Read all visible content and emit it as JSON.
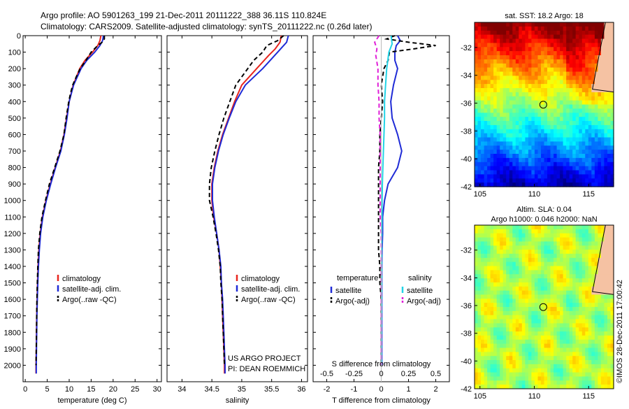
{
  "header": {
    "line1": "Argo profile: AO 5901263_199 21-Dec-2011 20111222_388 36.11S 110.824E",
    "line2": "Climatology: CARS2009. Satellite-adjusted climatology: synTS_20111222.nc (0.26d later)"
  },
  "colors": {
    "clim": "#e8261e",
    "sat": "#1f2bd6",
    "argo": "#000000",
    "sat_s": "#22d3e6",
    "argo_s": "#e020d8"
  },
  "chart_data": [
    {
      "type": "line",
      "name": "temperature",
      "xlabel": "temperature (deg C)",
      "ylabel": "",
      "xlim": [
        -0.5,
        31
      ],
      "ylim": [
        2100,
        0
      ],
      "xticks": [
        "0",
        "5",
        "10",
        "15",
        "20",
        "25",
        "30"
      ],
      "yticks": [
        "0",
        "100",
        "200",
        "300",
        "400",
        "500",
        "600",
        "700",
        "800",
        "900",
        "1000",
        "1100",
        "1200",
        "1300",
        "1400",
        "1500",
        "1600",
        "1700",
        "1800",
        "1900",
        "2000"
      ],
      "legend": [
        "climatology",
        "satellite-adj. clim.",
        "Argo(..raw -QC)"
      ],
      "series": [
        {
          "name": "climatology",
          "color_key": "clim",
          "depth": [
            0,
            30,
            60,
            100,
            150,
            200,
            300,
            400,
            500,
            600,
            700,
            800,
            900,
            1000,
            1100,
            1200,
            1300,
            1400,
            1500,
            1600,
            1700,
            1800,
            1900,
            2000,
            2050
          ],
          "values": [
            17.2,
            17.0,
            16.5,
            15.3,
            13.6,
            12.4,
            10.9,
            10.0,
            9.4,
            8.8,
            8.0,
            6.8,
            5.7,
            4.7,
            3.9,
            3.4,
            3.1,
            2.9,
            2.8,
            2.7,
            2.6,
            2.55,
            2.5,
            2.45,
            2.45
          ]
        },
        {
          "name": "satellite-adj. clim.",
          "color_key": "sat",
          "depth": [
            0,
            30,
            60,
            100,
            150,
            200,
            300,
            400,
            500,
            600,
            700,
            800,
            900,
            1000,
            1100,
            1200,
            1300,
            1400,
            1500,
            1600,
            1700,
            1800,
            1900,
            2000,
            2050
          ],
          "values": [
            17.8,
            17.6,
            17.0,
            15.8,
            14.0,
            12.7,
            11.0,
            10.0,
            9.5,
            8.9,
            8.1,
            6.9,
            5.8,
            4.8,
            4.0,
            3.5,
            3.2,
            3.0,
            2.85,
            2.75,
            2.65,
            2.6,
            2.55,
            2.5,
            2.5
          ]
        },
        {
          "name": "Argo(..raw -QC)",
          "color_key": "argo",
          "depth": [
            0,
            20,
            40,
            60,
            100,
            150,
            200,
            250,
            300,
            350,
            400,
            500,
            600,
            700,
            800,
            900,
            1000,
            1100,
            1200,
            1300,
            1400,
            1500,
            1600,
            1700,
            1800,
            1900,
            2000
          ],
          "values": [
            18.0,
            18.0,
            17.5,
            16.5,
            15.0,
            13.8,
            12.5,
            11.6,
            10.8,
            10.3,
            9.9,
            9.3,
            8.8,
            7.9,
            6.7,
            5.5,
            4.6,
            3.8,
            3.3,
            3.0,
            2.85,
            2.75,
            2.65,
            2.6,
            2.55,
            2.5,
            2.45
          ]
        }
      ]
    },
    {
      "type": "line",
      "name": "salinity",
      "xlabel": "salinity",
      "xlim": [
        33.75,
        36.1
      ],
      "ylim": [
        2100,
        0
      ],
      "xticks": [
        "34",
        "34.5",
        "35",
        "35.5",
        "36"
      ],
      "legend": [
        "climatology",
        "satellite-adj. clim.",
        "Argo(..raw -QC)"
      ],
      "annotation": [
        "US ARGO PROJECT",
        "PI: DEAN ROEMMICH"
      ],
      "series": [
        {
          "name": "climatology",
          "color_key": "clim",
          "depth": [
            0,
            40,
            80,
            120,
            200,
            300,
            400,
            500,
            600,
            700,
            800,
            900,
            1000,
            1100,
            1200,
            1300,
            1400,
            1500,
            1600,
            1700,
            1800,
            1900,
            2000,
            2050
          ],
          "values": [
            35.66,
            35.64,
            35.56,
            35.45,
            35.25,
            35.0,
            34.88,
            34.78,
            34.68,
            34.6,
            34.54,
            34.5,
            34.5,
            34.53,
            34.58,
            34.62,
            34.64,
            34.66,
            34.67,
            34.68,
            34.69,
            34.7,
            34.71,
            34.71
          ]
        },
        {
          "name": "satellite-adj. clim.",
          "color_key": "sat",
          "depth": [
            0,
            40,
            80,
            120,
            200,
            300,
            400,
            500,
            600,
            700,
            800,
            900,
            1000,
            1100,
            1200,
            1300,
            1400,
            1500,
            1600,
            1700,
            1800,
            1900,
            2000,
            2050
          ],
          "values": [
            35.78,
            35.75,
            35.65,
            35.55,
            35.35,
            35.06,
            34.9,
            34.79,
            34.69,
            34.61,
            34.55,
            34.51,
            34.51,
            34.54,
            34.58,
            34.62,
            34.65,
            34.66,
            34.68,
            34.69,
            34.7,
            34.71,
            34.72,
            34.72
          ]
        },
        {
          "name": "Argo(..raw -QC)",
          "color_key": "argo",
          "depth": [
            0,
            30,
            60,
            100,
            150,
            200,
            300,
            350,
            400,
            500,
            600,
            700,
            800,
            900,
            1000,
            1100,
            1200,
            1300,
            1400,
            1500,
            1600,
            1700,
            1800,
            1900,
            2000
          ],
          "values": [
            35.7,
            35.6,
            35.42,
            35.35,
            35.2,
            35.1,
            34.9,
            34.85,
            34.8,
            34.7,
            34.62,
            34.55,
            34.49,
            34.46,
            34.46,
            34.52,
            34.57,
            34.61,
            34.64,
            34.65,
            34.67,
            34.68,
            34.69,
            34.7,
            34.71
          ]
        }
      ]
    },
    {
      "type": "line",
      "name": "difference",
      "xlabel": "T difference from climatology",
      "xlabel_top": "S difference from climatology",
      "xlim": [
        -2.5,
        2.5
      ],
      "ylim": [
        2100,
        0
      ],
      "xticks": [
        "-2",
        "-1",
        "0",
        "1",
        "2"
      ],
      "xticks_top": [
        "-0.5",
        "-0.25",
        "0",
        "0.25",
        "0.5"
      ],
      "legend_titles": [
        "temperature",
        "salinity"
      ],
      "legend": [
        "satellite",
        "Argo(-adj)",
        "satellite",
        "Argo(-adj)"
      ],
      "series": [
        {
          "name": "satellite",
          "color_key": "sat",
          "depth": [
            0,
            30,
            60,
            100,
            150,
            200,
            300,
            400,
            500,
            600,
            700,
            800,
            900,
            1000,
            1100,
            1200,
            1300,
            1400,
            1600,
            1800,
            2000
          ],
          "values": [
            0.6,
            0.7,
            0.55,
            0.5,
            0.5,
            0.6,
            0.45,
            0.35,
            0.4,
            0.6,
            0.75,
            0.6,
            0.25,
            0.12,
            0.05,
            0.05,
            0.03,
            0.02,
            0.02,
            0.02,
            0.02
          ]
        },
        {
          "name": "Argo(-adj)",
          "color_key": "argo",
          "depth": [
            0,
            20,
            40,
            60,
            80,
            100,
            150,
            200,
            300,
            400,
            500,
            600,
            700,
            800,
            900,
            1000,
            1100,
            1200,
            1300,
            1400,
            1500,
            1600,
            1700,
            1800,
            1900,
            2000
          ],
          "values": [
            0.5,
            0.2,
            1.0,
            2.0,
            1.2,
            0.3,
            0.25,
            0.1,
            0.0,
            0.05,
            0.0,
            -0.05,
            -0.05,
            -0.1,
            -0.1,
            -0.1,
            -0.1,
            -0.1,
            -0.1,
            -0.05,
            -0.05,
            0.0,
            0.0,
            0.0,
            0.0,
            0.0
          ]
        },
        {
          "name": "satellite",
          "color_key": "sat_s",
          "depth": [
            0,
            50,
            100,
            150,
            200,
            300,
            400,
            500,
            600,
            700,
            800,
            900,
            1000,
            1200,
            1400,
            1600,
            1800,
            2000
          ],
          "values": [
            0.09,
            0.1,
            0.07,
            0.06,
            0.05,
            0.04,
            0.03,
            0.03,
            0.025,
            0.02,
            0.015,
            0.01,
            0.008,
            0.005,
            0.004,
            0.003,
            0.002,
            0.002
          ]
        },
        {
          "name": "Argo(-adj)",
          "color_key": "argo_s",
          "depth": [
            0,
            40,
            80,
            120,
            200,
            300,
            400,
            500,
            600,
            700,
            800,
            900,
            1000,
            1100,
            1200,
            1400,
            1600,
            1800,
            2000
          ],
          "values": [
            -0.02,
            -0.06,
            -0.04,
            -0.05,
            -0.03,
            -0.03,
            -0.02,
            -0.02,
            -0.01,
            -0.01,
            -0.01,
            -0.01,
            -0.01,
            -0.01,
            0.0,
            0.0,
            0.0,
            0.0,
            0.0
          ]
        }
      ]
    },
    {
      "type": "heatmap",
      "name": "sst_map",
      "title": "sat. SST: 18.2 Argo: 18",
      "xlim": [
        104.5,
        117.3
      ],
      "ylim": [
        -42,
        -30.2
      ],
      "xticks": [
        "105",
        "110",
        "115"
      ],
      "yticks": [
        "-32",
        "-34",
        "-36",
        "-38",
        "-40",
        "-42"
      ],
      "float": [
        110.824,
        -36.11
      ]
    },
    {
      "type": "heatmap",
      "name": "sla_map",
      "title": "Altim. SLA: 0.04",
      "subtitle": "Argo h1000: 0.046 h2000: NaN",
      "xlim": [
        104.5,
        117.3
      ],
      "ylim": [
        -42,
        -30.2
      ],
      "xticks": [
        "105",
        "110",
        "115"
      ],
      "yticks": [
        "-32",
        "-34",
        "-36",
        "-38",
        "-40",
        "-42"
      ],
      "float": [
        110.824,
        -36.11
      ]
    }
  ],
  "credit": "©IMOS 28-Dec-2011 17:00:42"
}
